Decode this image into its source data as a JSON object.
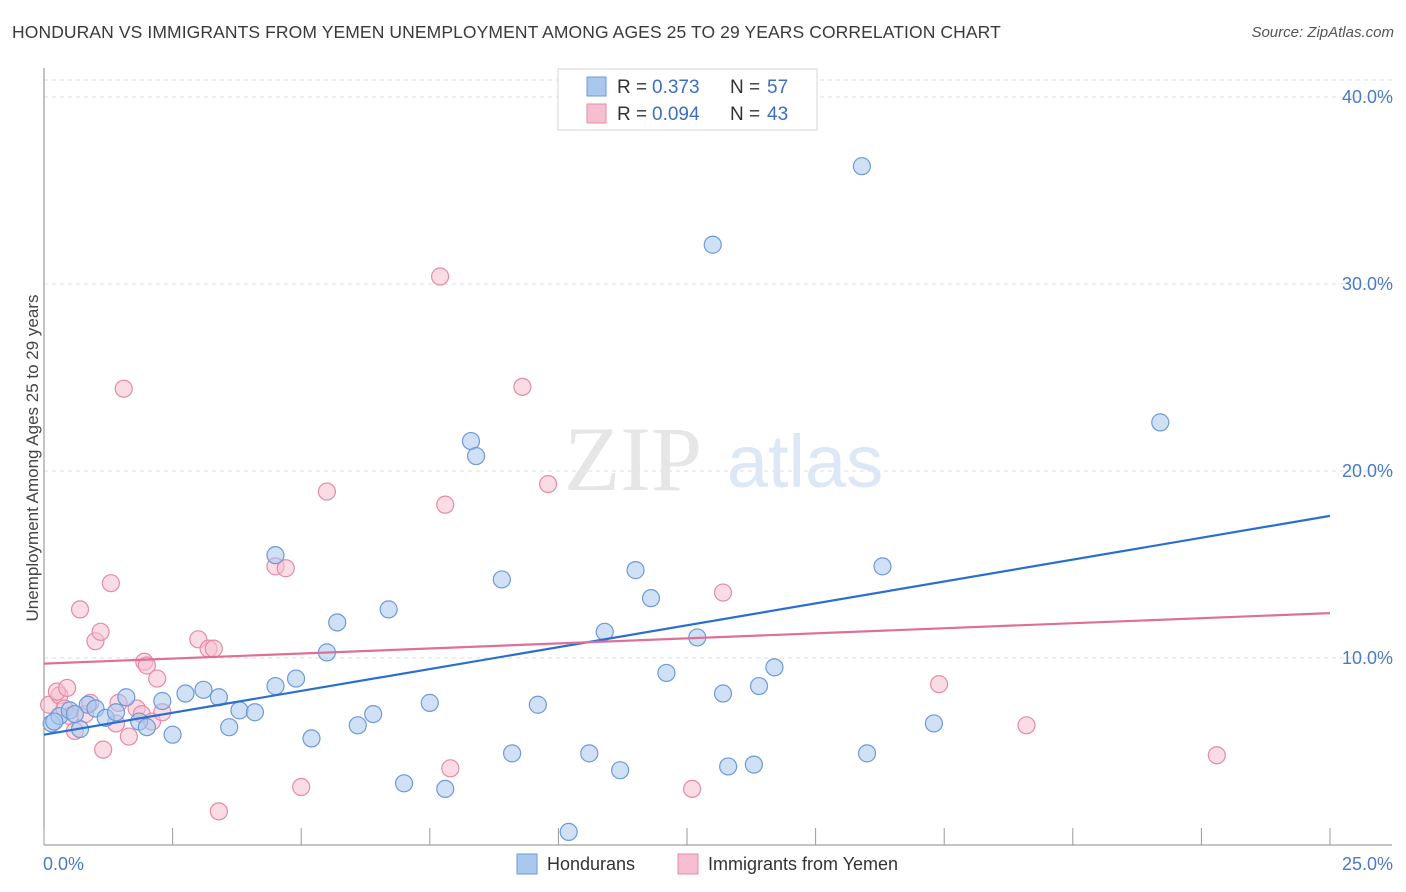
{
  "title": "HONDURAN VS IMMIGRANTS FROM YEMEN UNEMPLOYMENT AMONG AGES 25 TO 29 YEARS CORRELATION CHART",
  "source": "Source: ZipAtlas.com",
  "watermark": {
    "zip": "ZIP",
    "atlas": "atlas"
  },
  "legend": {
    "rows": [
      {
        "r_label": "R = ",
        "r_value": "0.373",
        "n_label": "N = ",
        "n_value": "57"
      },
      {
        "r_label": "R = ",
        "r_value": "0.094",
        "n_label": "N = ",
        "n_value": "43"
      }
    ]
  },
  "colors": {
    "blue_fill": "#aac8ee",
    "blue_stroke": "#6d9ad8",
    "blue_line": "#2a6fd0",
    "pink_fill": "#f6bfd0",
    "pink_stroke": "#e58aa8",
    "pink_line": "#e06f98",
    "grid": "#dcdcdc",
    "tick_text": "#4a7bc4"
  },
  "chart_data": {
    "type": "scatter",
    "title": "HONDURAN VS IMMIGRANTS FROM YEMEN UNEMPLOYMENT AMONG AGES 25 TO 29 YEARS CORRELATION CHART",
    "xlabel": "",
    "ylabel": "Unemployment Among Ages 25 to 29 years",
    "xlim": [
      0,
      25
    ],
    "ylim": [
      0,
      40
    ],
    "x_tick_labels": [
      "0.0%",
      "25.0%"
    ],
    "y_ticks": [
      10,
      20,
      30,
      40
    ],
    "y_tick_labels": [
      "10.0%",
      "20.0%",
      "30.0%",
      "40.0%"
    ],
    "series": [
      {
        "name": "Hondurans",
        "color": "blue",
        "trend": {
          "x": [
            0,
            25
          ],
          "y": [
            5.9,
            17.6
          ]
        },
        "points": [
          [
            0.15,
            6.5
          ],
          [
            0.3,
            6.9
          ],
          [
            0.5,
            7.2
          ],
          [
            0.7,
            6.2
          ],
          [
            0.85,
            7.5
          ],
          [
            1.0,
            7.3
          ],
          [
            1.2,
            6.8
          ],
          [
            1.4,
            7.1
          ],
          [
            1.6,
            7.9
          ],
          [
            1.85,
            6.6
          ],
          [
            2.0,
            6.3
          ],
          [
            2.3,
            7.7
          ],
          [
            2.5,
            5.9
          ],
          [
            2.75,
            8.1
          ],
          [
            3.1,
            8.3
          ],
          [
            3.4,
            7.9
          ],
          [
            3.6,
            6.3
          ],
          [
            3.8,
            7.2
          ],
          [
            4.1,
            7.1
          ],
          [
            4.5,
            8.5
          ],
          [
            4.5,
            15.5
          ],
          [
            4.9,
            8.9
          ],
          [
            5.2,
            5.7
          ],
          [
            5.5,
            10.3
          ],
          [
            5.7,
            11.9
          ],
          [
            6.1,
            6.4
          ],
          [
            6.4,
            7.0
          ],
          [
            6.7,
            12.6
          ],
          [
            7.0,
            3.3
          ],
          [
            7.5,
            7.6
          ],
          [
            7.8,
            3.0
          ],
          [
            8.3,
            21.6
          ],
          [
            8.4,
            20.8
          ],
          [
            8.9,
            14.2
          ],
          [
            9.1,
            4.9
          ],
          [
            9.6,
            7.5
          ],
          [
            10.2,
            0.7
          ],
          [
            10.6,
            4.9
          ],
          [
            10.9,
            11.4
          ],
          [
            11.2,
            4.0
          ],
          [
            11.5,
            14.7
          ],
          [
            11.8,
            13.2
          ],
          [
            12.1,
            9.2
          ],
          [
            12.7,
            11.1
          ],
          [
            13.0,
            32.1
          ],
          [
            13.2,
            8.1
          ],
          [
            13.3,
            4.2
          ],
          [
            13.8,
            4.3
          ],
          [
            13.9,
            8.5
          ],
          [
            14.2,
            9.5
          ],
          [
            15.9,
            36.3
          ],
          [
            16.0,
            4.9
          ],
          [
            16.3,
            14.9
          ],
          [
            17.3,
            6.5
          ],
          [
            21.7,
            22.6
          ],
          [
            0.2,
            6.6
          ],
          [
            0.6,
            7.0
          ]
        ]
      },
      {
        "name": "Immigrants from Yemen",
        "color": "pink",
        "trend": {
          "x": [
            0,
            25
          ],
          "y": [
            9.7,
            12.4
          ]
        },
        "points": [
          [
            0.1,
            7.5
          ],
          [
            0.3,
            8.0
          ],
          [
            0.4,
            7.3
          ],
          [
            0.5,
            6.9
          ],
          [
            0.6,
            6.1
          ],
          [
            0.7,
            12.6
          ],
          [
            0.8,
            7.0
          ],
          [
            0.9,
            7.6
          ],
          [
            1.0,
            10.9
          ],
          [
            1.1,
            11.4
          ],
          [
            1.15,
            5.1
          ],
          [
            1.3,
            14.0
          ],
          [
            1.4,
            6.5
          ],
          [
            1.45,
            7.6
          ],
          [
            1.55,
            24.4
          ],
          [
            1.65,
            5.8
          ],
          [
            1.8,
            7.3
          ],
          [
            1.9,
            7.0
          ],
          [
            1.95,
            9.8
          ],
          [
            2.0,
            9.6
          ],
          [
            2.1,
            6.6
          ],
          [
            2.2,
            8.9
          ],
          [
            2.3,
            7.1
          ],
          [
            3.0,
            11.0
          ],
          [
            3.2,
            10.5
          ],
          [
            3.3,
            10.5
          ],
          [
            3.4,
            1.8
          ],
          [
            4.5,
            14.9
          ],
          [
            4.7,
            14.8
          ],
          [
            5.0,
            3.1
          ],
          [
            5.5,
            18.9
          ],
          [
            7.7,
            30.4
          ],
          [
            7.8,
            18.2
          ],
          [
            7.9,
            4.1
          ],
          [
            9.3,
            24.5
          ],
          [
            9.8,
            19.3
          ],
          [
            12.6,
            3.0
          ],
          [
            13.2,
            13.5
          ],
          [
            17.4,
            8.6
          ],
          [
            19.1,
            6.4
          ],
          [
            22.8,
            4.8
          ],
          [
            0.25,
            8.2
          ],
          [
            0.45,
            8.4
          ]
        ]
      }
    ]
  },
  "bottom_legend": {
    "items": [
      {
        "label": "Hondurans"
      },
      {
        "label": "Immigrants from Yemen"
      }
    ]
  }
}
